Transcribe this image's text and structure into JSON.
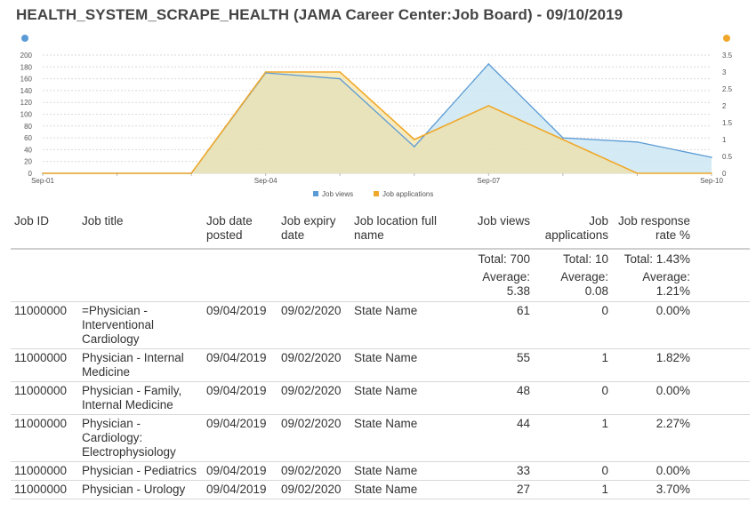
{
  "page": {
    "title": "HEALTH_SYSTEM_SCRAPE_HEALTH (JAMA Career Center:Job Board) - 09/10/2019"
  },
  "colors": {
    "views": "#5b9bd5",
    "views_fill": "#cde6f3",
    "applications": "#f0a82a",
    "applications_fill": "#f3df9a",
    "overlap_fill": "#d8d8a6",
    "grid": "#d9d9d9"
  },
  "chart_data": {
    "type": "area",
    "x": [
      "Sep-01",
      "Sep-02",
      "Sep-03",
      "Sep-04",
      "Sep-05",
      "Sep-06",
      "Sep-07",
      "Sep-08",
      "Sep-09",
      "Sep-10"
    ],
    "x_tick_labels": [
      "Sep-01",
      "Sep-04",
      "Sep-07",
      "Sep-10"
    ],
    "series": [
      {
        "name": "Job views",
        "axis": "left",
        "color": "#5b9bd5",
        "values": [
          0,
          0,
          0,
          170,
          160,
          45,
          185,
          60,
          53,
          27
        ]
      },
      {
        "name": "Job applications",
        "axis": "right",
        "color": "#f0a82a",
        "values": [
          0,
          0,
          0,
          3,
          3,
          1,
          2,
          1,
          0,
          0
        ]
      }
    ],
    "y_left": {
      "ylim": [
        0,
        200
      ],
      "ticks": [
        0,
        20,
        40,
        60,
        80,
        100,
        120,
        140,
        160,
        180,
        200
      ]
    },
    "y_right": {
      "ylim": [
        0,
        3.5
      ],
      "ticks": [
        0,
        0.5,
        1,
        1.5,
        2,
        2.5,
        3,
        3.5
      ]
    },
    "grid": true,
    "legend_placement": "bottom-center"
  },
  "table": {
    "headers": {
      "job_id": "Job ID",
      "job_title": "Job title",
      "date_posted": "Job date posted",
      "expiry_date": "Job expiry date",
      "location": "Job location full name",
      "views": "Job views",
      "applications": "Job applications",
      "response_rate": "Job response rate %"
    },
    "totals": {
      "views": "Total: 700",
      "applications": "Total: 10",
      "response_rate": "Total: 1.43%"
    },
    "averages": {
      "views": "Average: 5.38",
      "applications": "Average: 0.08",
      "response_rate": "Average: 1.21%"
    },
    "rows": [
      {
        "job_id": "11000000",
        "title": "=Physician - Interventional Cardiology",
        "posted": "09/04/2019",
        "expiry": "09/02/2020",
        "location": "State Name",
        "views": "61",
        "applications": "0",
        "rate": "0.00%"
      },
      {
        "job_id": "11000000",
        "title": "Physician - Internal Medicine",
        "posted": "09/04/2019",
        "expiry": "09/02/2020",
        "location": "State Name",
        "views": "55",
        "applications": "1",
        "rate": "1.82%"
      },
      {
        "job_id": "11000000",
        "title": "Physician - Family, Internal Medicine",
        "posted": "09/04/2019",
        "expiry": "09/02/2020",
        "location": "State Name",
        "views": "48",
        "applications": "0",
        "rate": "0.00%"
      },
      {
        "job_id": "11000000",
        "title": "Physician - Cardiology: Electrophysiology",
        "posted": "09/04/2019",
        "expiry": "09/02/2020",
        "location": "State Name",
        "views": "44",
        "applications": "1",
        "rate": "2.27%"
      },
      {
        "job_id": "11000000",
        "title": "Physician - Pediatrics",
        "posted": "09/04/2019",
        "expiry": "09/02/2020",
        "location": "State Name",
        "views": "33",
        "applications": "0",
        "rate": "0.00%"
      },
      {
        "job_id": "11000000",
        "title": "Physician - Urology",
        "posted": "09/04/2019",
        "expiry": "09/02/2020",
        "location": "State Name",
        "views": "27",
        "applications": "1",
        "rate": "3.70%"
      }
    ]
  }
}
